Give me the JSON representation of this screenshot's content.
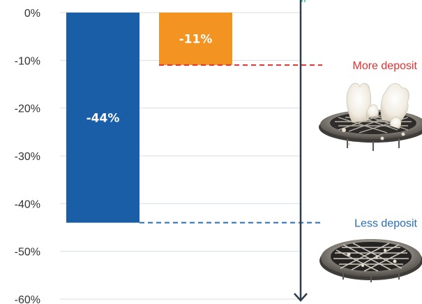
{
  "chart_data": {
    "type": "bar",
    "ylim": [
      -60,
      0
    ],
    "yticks": [
      {
        "value": 0,
        "label": "0%"
      },
      {
        "value": -10,
        "label": "-10%"
      },
      {
        "value": -20,
        "label": "-20%"
      },
      {
        "value": -30,
        "label": "-30%"
      },
      {
        "value": -40,
        "label": "-40%"
      },
      {
        "value": -50,
        "label": "-50%"
      },
      {
        "value": -60,
        "label": "-60%"
      }
    ],
    "grid": true,
    "bars": [
      {
        "value": -44,
        "label": "-44%",
        "color": "#1a5ea8"
      },
      {
        "value": -11,
        "label": "-11%",
        "color": "#f39322"
      }
    ],
    "annotations": [
      {
        "text": "More deposit",
        "value": -11,
        "color": "#e03030"
      },
      {
        "text": "Less deposit",
        "value": -44,
        "color": "#2a6db5"
      }
    ],
    "arrow_color": "#2b3d4c"
  }
}
